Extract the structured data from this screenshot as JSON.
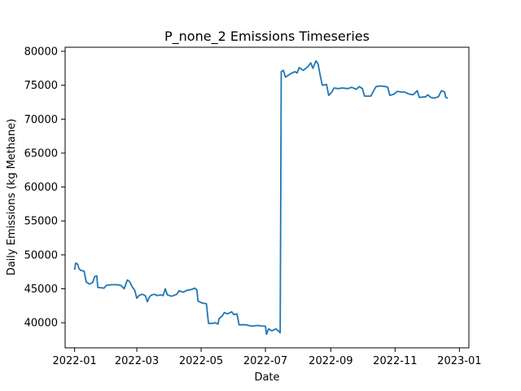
{
  "chart_data": {
    "type": "line",
    "title": "P_none_2 Emissions Timeseries",
    "xlabel": "Date",
    "ylabel": "Daily Emissions (kg Methane)",
    "x_ticks": [
      "2022-01",
      "2022-03",
      "2022-05",
      "2022-07",
      "2022-09",
      "2022-11",
      "2023-01"
    ],
    "y_ticks": [
      "40000",
      "45000",
      "50000",
      "55000",
      "60000",
      "65000",
      "70000",
      "75000",
      "80000"
    ],
    "xlim": [
      "2021-12-23",
      "2023-01-10"
    ],
    "ylim": [
      36300,
      80600
    ],
    "grid": false,
    "series": [
      {
        "color": "#1f77b4",
        "points": [
          [
            "2022-01-01",
            47800
          ],
          [
            "2022-01-02",
            48800
          ],
          [
            "2022-01-04",
            48600
          ],
          [
            "2022-01-05",
            48000
          ],
          [
            "2022-01-07",
            47700
          ],
          [
            "2022-01-10",
            47600
          ],
          [
            "2022-01-12",
            46000
          ],
          [
            "2022-01-15",
            45700
          ],
          [
            "2022-01-18",
            45900
          ],
          [
            "2022-01-20",
            46800
          ],
          [
            "2022-01-22",
            46900
          ],
          [
            "2022-01-23",
            45200
          ],
          [
            "2022-01-29",
            45100
          ],
          [
            "2022-01-31",
            45500
          ],
          [
            "2022-02-05",
            45600
          ],
          [
            "2022-02-10",
            45600
          ],
          [
            "2022-02-14",
            45500
          ],
          [
            "2022-02-17",
            45000
          ],
          [
            "2022-02-20",
            46300
          ],
          [
            "2022-02-22",
            46100
          ],
          [
            "2022-02-25",
            45200
          ],
          [
            "2022-02-27",
            44800
          ],
          [
            "2022-03-01",
            43600
          ],
          [
            "2022-03-03",
            44000
          ],
          [
            "2022-03-06",
            44200
          ],
          [
            "2022-03-09",
            44000
          ],
          [
            "2022-03-11",
            43100
          ],
          [
            "2022-03-13",
            43800
          ],
          [
            "2022-03-15",
            44100
          ],
          [
            "2022-03-18",
            44200
          ],
          [
            "2022-03-20",
            44000
          ],
          [
            "2022-03-24",
            44100
          ],
          [
            "2022-03-26",
            44000
          ],
          [
            "2022-03-28",
            45000
          ],
          [
            "2022-03-30",
            44100
          ],
          [
            "2022-04-03",
            43900
          ],
          [
            "2022-04-08",
            44200
          ],
          [
            "2022-04-10",
            44700
          ],
          [
            "2022-04-14",
            44500
          ],
          [
            "2022-04-18",
            44800
          ],
          [
            "2022-04-22",
            44900
          ],
          [
            "2022-04-25",
            45100
          ],
          [
            "2022-04-27",
            44800
          ],
          [
            "2022-04-28",
            43200
          ],
          [
            "2022-05-02",
            42900
          ],
          [
            "2022-05-06",
            42800
          ],
          [
            "2022-05-08",
            39900
          ],
          [
            "2022-05-12",
            39900
          ],
          [
            "2022-05-14",
            40000
          ],
          [
            "2022-05-17",
            39800
          ],
          [
            "2022-05-18",
            40600
          ],
          [
            "2022-05-21",
            41000
          ],
          [
            "2022-05-23",
            41500
          ],
          [
            "2022-05-26",
            41300
          ],
          [
            "2022-05-30",
            41600
          ],
          [
            "2022-06-01",
            41200
          ],
          [
            "2022-06-04",
            41300
          ],
          [
            "2022-06-06",
            39700
          ],
          [
            "2022-06-12",
            39700
          ],
          [
            "2022-06-18",
            39500
          ],
          [
            "2022-06-24",
            39600
          ],
          [
            "2022-06-28",
            39500
          ],
          [
            "2022-07-01",
            39500
          ],
          [
            "2022-07-02",
            38300
          ],
          [
            "2022-07-04",
            39100
          ],
          [
            "2022-07-07",
            38800
          ],
          [
            "2022-07-11",
            39100
          ],
          [
            "2022-07-14",
            38700
          ],
          [
            "2022-07-15",
            38500
          ],
          [
            "2022-07-16",
            77000
          ],
          [
            "2022-07-18",
            77200
          ],
          [
            "2022-07-20",
            76200
          ],
          [
            "2022-07-25",
            76700
          ],
          [
            "2022-07-29",
            77000
          ],
          [
            "2022-07-31",
            76800
          ],
          [
            "2022-08-02",
            77600
          ],
          [
            "2022-08-06",
            77200
          ],
          [
            "2022-08-10",
            77700
          ],
          [
            "2022-08-13",
            78300
          ],
          [
            "2022-08-15",
            77500
          ],
          [
            "2022-08-18",
            78600
          ],
          [
            "2022-08-20",
            78100
          ],
          [
            "2022-08-22",
            76400
          ],
          [
            "2022-08-24",
            75000
          ],
          [
            "2022-08-28",
            75100
          ],
          [
            "2022-08-30",
            73500
          ],
          [
            "2022-09-02",
            74000
          ],
          [
            "2022-09-04",
            74600
          ],
          [
            "2022-09-08",
            74500
          ],
          [
            "2022-09-12",
            74600
          ],
          [
            "2022-09-17",
            74500
          ],
          [
            "2022-09-21",
            74700
          ],
          [
            "2022-09-25",
            74400
          ],
          [
            "2022-09-28",
            74800
          ],
          [
            "2022-10-01",
            74500
          ],
          [
            "2022-10-03",
            73400
          ],
          [
            "2022-10-09",
            73400
          ],
          [
            "2022-10-12",
            74300
          ],
          [
            "2022-10-14",
            74800
          ],
          [
            "2022-10-18",
            74900
          ],
          [
            "2022-10-23",
            74800
          ],
          [
            "2022-10-25",
            74700
          ],
          [
            "2022-10-27",
            73500
          ],
          [
            "2022-10-31",
            73700
          ],
          [
            "2022-11-03",
            74100
          ],
          [
            "2022-11-07",
            74000
          ],
          [
            "2022-11-10",
            74000
          ],
          [
            "2022-11-14",
            73700
          ],
          [
            "2022-11-18",
            73600
          ],
          [
            "2022-11-22",
            74200
          ],
          [
            "2022-11-24",
            73200
          ],
          [
            "2022-11-30",
            73300
          ],
          [
            "2022-12-02",
            73600
          ],
          [
            "2022-12-05",
            73200
          ],
          [
            "2022-12-08",
            73100
          ],
          [
            "2022-12-12",
            73300
          ],
          [
            "2022-12-15",
            74200
          ],
          [
            "2022-12-18",
            74000
          ],
          [
            "2022-12-19",
            73200
          ],
          [
            "2022-12-21",
            73100
          ]
        ]
      }
    ]
  }
}
